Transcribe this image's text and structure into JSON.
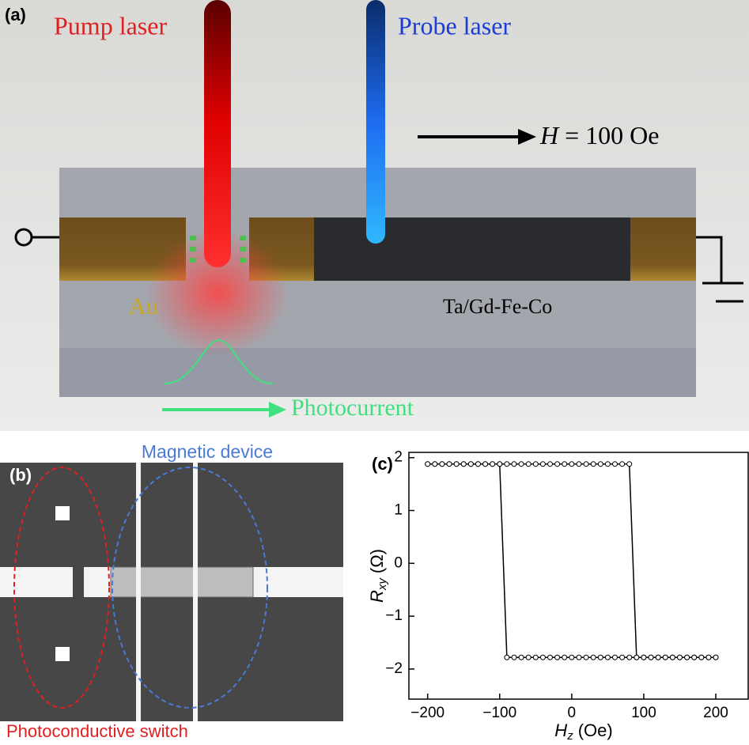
{
  "panel_a": {
    "label": "(a)",
    "pump_laser": "Pump laser",
    "probe_laser": "Probe laser",
    "field": {
      "symbol": "H",
      "rest": "= 100 Oe"
    },
    "au": "Au",
    "film": "Ta/Gd-Fe-Co",
    "photocurrent": "Photocurrent"
  },
  "panel_b": {
    "label": "(b)",
    "magnetic_device": "Magnetic device",
    "switch": "Photoconductive switch"
  },
  "chart_data": {
    "type": "line",
    "label": "(c)",
    "x_label": {
      "main": "H",
      "sub": "z",
      "unit": "(Oe)"
    },
    "y_label": {
      "main": "R",
      "sub": "xy",
      "unit": "(Ω)"
    },
    "xlim": [
      -226,
      245
    ],
    "ylim": [
      -2.57,
      2.1
    ],
    "xticks": [
      {
        "value": -200,
        "label": "−200"
      },
      {
        "value": -100,
        "label": "−100"
      },
      0,
      100,
      200
    ],
    "yticks": [
      {
        "value": -2,
        "label": "−2"
      },
      {
        "value": -1,
        "label": "−1"
      },
      0,
      1,
      2
    ],
    "series": [
      {
        "color": "#000000",
        "x": [
          -200,
          -190,
          -180,
          -170,
          -160,
          -150,
          -140,
          -130,
          -120,
          -110,
          -100,
          -90,
          -80,
          -70,
          -60,
          -50,
          -40,
          -30,
          -20,
          -10,
          0,
          10,
          20,
          30,
          40,
          50,
          60,
          70,
          80,
          90,
          100,
          110,
          120,
          130,
          140,
          150,
          160,
          170,
          180,
          190,
          200
        ],
        "values": [
          1.88,
          1.88,
          1.88,
          1.88,
          1.88,
          1.88,
          1.88,
          1.88,
          1.88,
          1.88,
          1.88,
          1.88,
          1.88,
          1.88,
          1.88,
          1.88,
          1.88,
          1.88,
          1.88,
          1.88,
          1.88,
          1.88,
          1.88,
          1.88,
          1.88,
          1.88,
          1.88,
          1.88,
          1.88,
          -1.78,
          -1.78,
          -1.78,
          -1.78,
          -1.78,
          -1.78,
          -1.78,
          -1.78,
          -1.78,
          -1.78,
          -1.78,
          -1.78
        ]
      },
      {
        "color": "#000000",
        "x": [
          200,
          190,
          180,
          170,
          160,
          150,
          140,
          130,
          120,
          110,
          100,
          90,
          80,
          70,
          60,
          50,
          40,
          30,
          20,
          10,
          0,
          -10,
          -20,
          -30,
          -40,
          -50,
          -60,
          -70,
          -80,
          -90,
          -100,
          -110,
          -120,
          -130,
          -140,
          -150,
          -160,
          -170,
          -180,
          -190,
          -200
        ],
        "values": [
          -1.78,
          -1.78,
          -1.78,
          -1.78,
          -1.78,
          -1.78,
          -1.78,
          -1.78,
          -1.78,
          -1.78,
          -1.78,
          -1.78,
          -1.78,
          -1.78,
          -1.78,
          -1.78,
          -1.78,
          -1.78,
          -1.78,
          -1.78,
          -1.78,
          -1.78,
          -1.78,
          -1.78,
          -1.78,
          -1.78,
          -1.78,
          -1.78,
          -1.78,
          -1.78,
          1.88,
          1.88,
          1.88,
          1.88,
          1.88,
          1.88,
          1.88,
          1.88,
          1.88,
          1.88,
          1.88
        ]
      }
    ]
  }
}
